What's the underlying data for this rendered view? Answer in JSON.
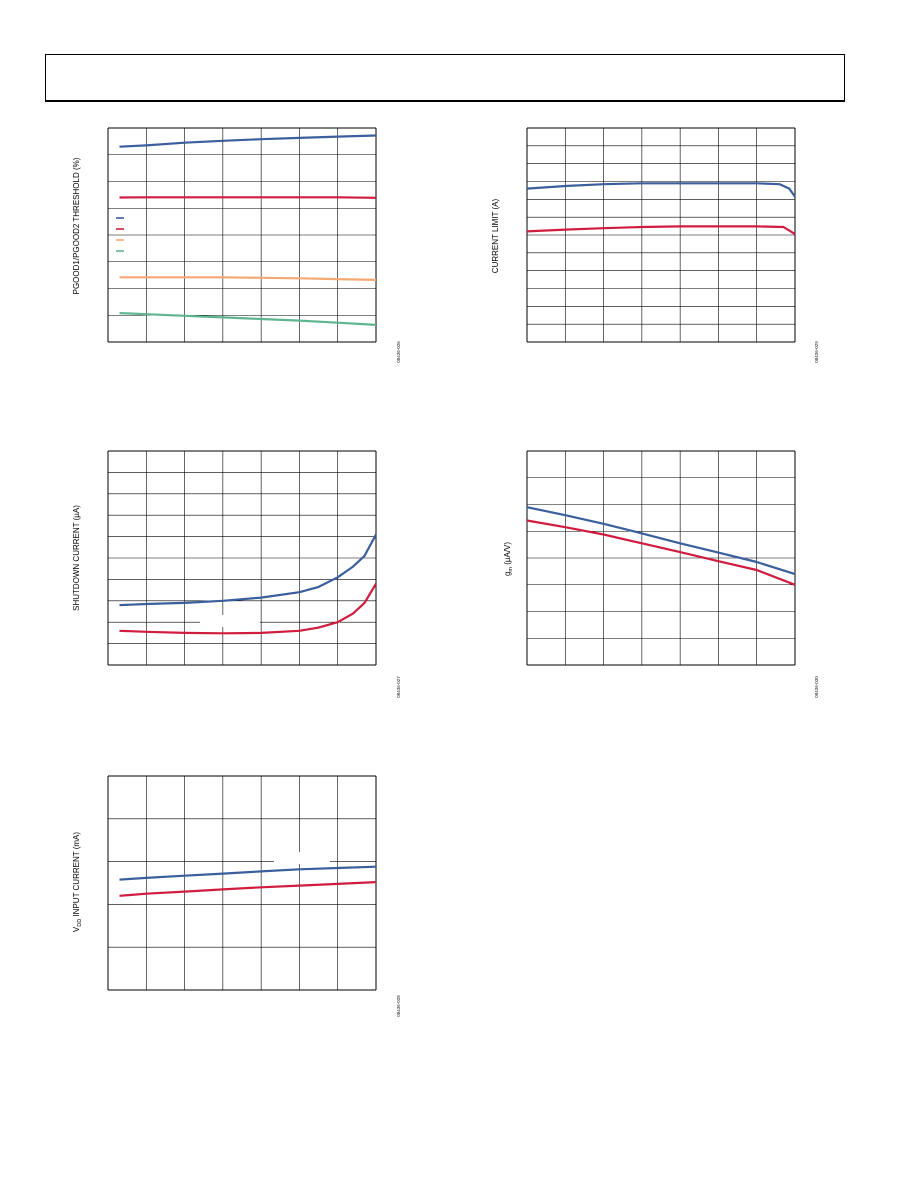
{
  "colors": {
    "blue": "#3a5f9c",
    "red": "#d01c3f",
    "orange": "#f4a872",
    "green": "#5fb58f",
    "grid": "#000000"
  },
  "charts": [
    {
      "id": "pgood-threshold",
      "fig_id": "08436-026",
      "ylabel": "PGOOD1/PGOOD2 THRESHOLD (%)",
      "chart_data": {
        "type": "line",
        "title": "",
        "xlabel": "",
        "ylabel": "PGOOD1/PGOOD2 THRESHOLD (%)",
        "grid": true,
        "xlim": [
          0,
          7
        ],
        "ylim": [
          0,
          8
        ],
        "legend": "left",
        "series": [
          {
            "color": "#3a5f9c",
            "x": [
              0.3,
              1,
              2,
              3,
              4,
              5,
              6,
              7
            ],
            "y": [
              7.3,
              7.35,
              7.45,
              7.52,
              7.58,
              7.63,
              7.68,
              7.72
            ]
          },
          {
            "color": "#d01c3f",
            "x": [
              0.3,
              1,
              2,
              3,
              4,
              5,
              6,
              7
            ],
            "y": [
              5.4,
              5.41,
              5.41,
              5.41,
              5.41,
              5.41,
              5.41,
              5.39
            ]
          },
          {
            "color": "#f4a872",
            "x": [
              0.3,
              1,
              2,
              3,
              4,
              5,
              6,
              7
            ],
            "y": [
              2.42,
              2.42,
              2.42,
              2.42,
              2.4,
              2.38,
              2.35,
              2.32
            ]
          },
          {
            "color": "#5fb58f",
            "x": [
              0.3,
              1,
              2,
              3,
              4,
              5,
              6,
              7
            ],
            "y": [
              1.08,
              1.04,
              0.98,
              0.92,
              0.86,
              0.8,
              0.72,
              0.64
            ]
          }
        ]
      }
    },
    {
      "id": "current-limit",
      "fig_id": "08436-029",
      "ylabel": "CURRENT LIMIT (A)",
      "chart_data": {
        "type": "line",
        "title": "",
        "xlabel": "",
        "ylabel": "CURRENT LIMIT (A)",
        "grid": true,
        "xlim": [
          0,
          7
        ],
        "ylim": [
          0,
          12
        ],
        "series": [
          {
            "color": "#3a5f9c",
            "x": [
              0,
              1,
              2,
              3,
              4,
              5,
              6,
              6.6,
              6.85,
              7
            ],
            "y": [
              8.6,
              8.75,
              8.85,
              8.9,
              8.9,
              8.9,
              8.9,
              8.85,
              8.6,
              8.15
            ]
          },
          {
            "color": "#d01c3f",
            "x": [
              0,
              1,
              2,
              3,
              4,
              5,
              6,
              6.7,
              7
            ],
            "y": [
              6.2,
              6.3,
              6.38,
              6.45,
              6.48,
              6.48,
              6.48,
              6.45,
              6.05
            ]
          }
        ]
      }
    },
    {
      "id": "shutdown-current",
      "fig_id": "08436-027",
      "ylabel": "SHUTDOWN CURRENT (µA)",
      "chart_data": {
        "type": "line",
        "title": "",
        "xlabel": "",
        "ylabel": "SHUTDOWN CURRENT (µA)",
        "grid": true,
        "xlim": [
          0,
          7
        ],
        "ylim": [
          0,
          10
        ],
        "series": [
          {
            "color": "#3a5f9c",
            "x": [
              0.3,
              1,
              2,
              3,
              4,
              5,
              5.5,
              6,
              6.4,
              6.7,
              7
            ],
            "y": [
              2.8,
              2.85,
              2.9,
              3.0,
              3.15,
              3.4,
              3.65,
              4.1,
              4.6,
              5.1,
              6.1
            ]
          },
          {
            "color": "#d01c3f",
            "x": [
              0.3,
              1,
              2,
              3,
              4,
              5,
              5.5,
              6,
              6.4,
              6.7,
              7
            ],
            "y": [
              1.6,
              1.55,
              1.5,
              1.48,
              1.5,
              1.6,
              1.75,
              2.0,
              2.4,
              2.9,
              3.8
            ]
          }
        ]
      }
    },
    {
      "id": "gm",
      "fig_id": "08436-030",
      "ylabel": "gm (µA/V)",
      "ylabel_main": "g",
      "ylabel_sub": "m",
      "ylabel_rest": " (µA/V)",
      "chart_data": {
        "type": "line",
        "title": "",
        "xlabel": "",
        "ylabel": "gm (µA/V)",
        "grid": true,
        "xlim": [
          0,
          7
        ],
        "ylim": [
          0,
          8
        ],
        "series": [
          {
            "color": "#3a5f9c",
            "x": [
              0,
              1,
              2,
              3,
              4,
              5,
              6,
              7
            ],
            "y": [
              5.9,
              5.6,
              5.28,
              4.92,
              4.55,
              4.2,
              3.85,
              3.4
            ]
          },
          {
            "color": "#d01c3f",
            "x": [
              0,
              1,
              2,
              3,
              4,
              5,
              6,
              7
            ],
            "y": [
              5.4,
              5.15,
              4.88,
              4.55,
              4.22,
              3.88,
              3.55,
              3.0
            ]
          }
        ]
      }
    },
    {
      "id": "vdd-input-current",
      "fig_id": "08436-028",
      "ylabel_main": "V",
      "ylabel_sub": "DD",
      "ylabel_rest": " INPUT CURRENT (mA)",
      "ylabel": "VDD INPUT CURRENT (mA)",
      "chart_data": {
        "type": "line",
        "title": "",
        "xlabel": "",
        "ylabel": "VDD INPUT CURRENT (mA)",
        "grid": true,
        "xlim": [
          0,
          7
        ],
        "ylim": [
          0,
          5
        ],
        "series": [
          {
            "color": "#3a5f9c",
            "x": [
              0.3,
              1,
              2,
              3,
              4,
              5,
              6,
              7
            ],
            "y": [
              2.58,
              2.62,
              2.67,
              2.72,
              2.77,
              2.82,
              2.85,
              2.88
            ]
          },
          {
            "color": "#d01c3f",
            "x": [
              0.3,
              1,
              2,
              3,
              4,
              5,
              6,
              7
            ],
            "y": [
              2.2,
              2.25,
              2.3,
              2.35,
              2.4,
              2.44,
              2.48,
              2.52
            ]
          }
        ]
      }
    }
  ]
}
